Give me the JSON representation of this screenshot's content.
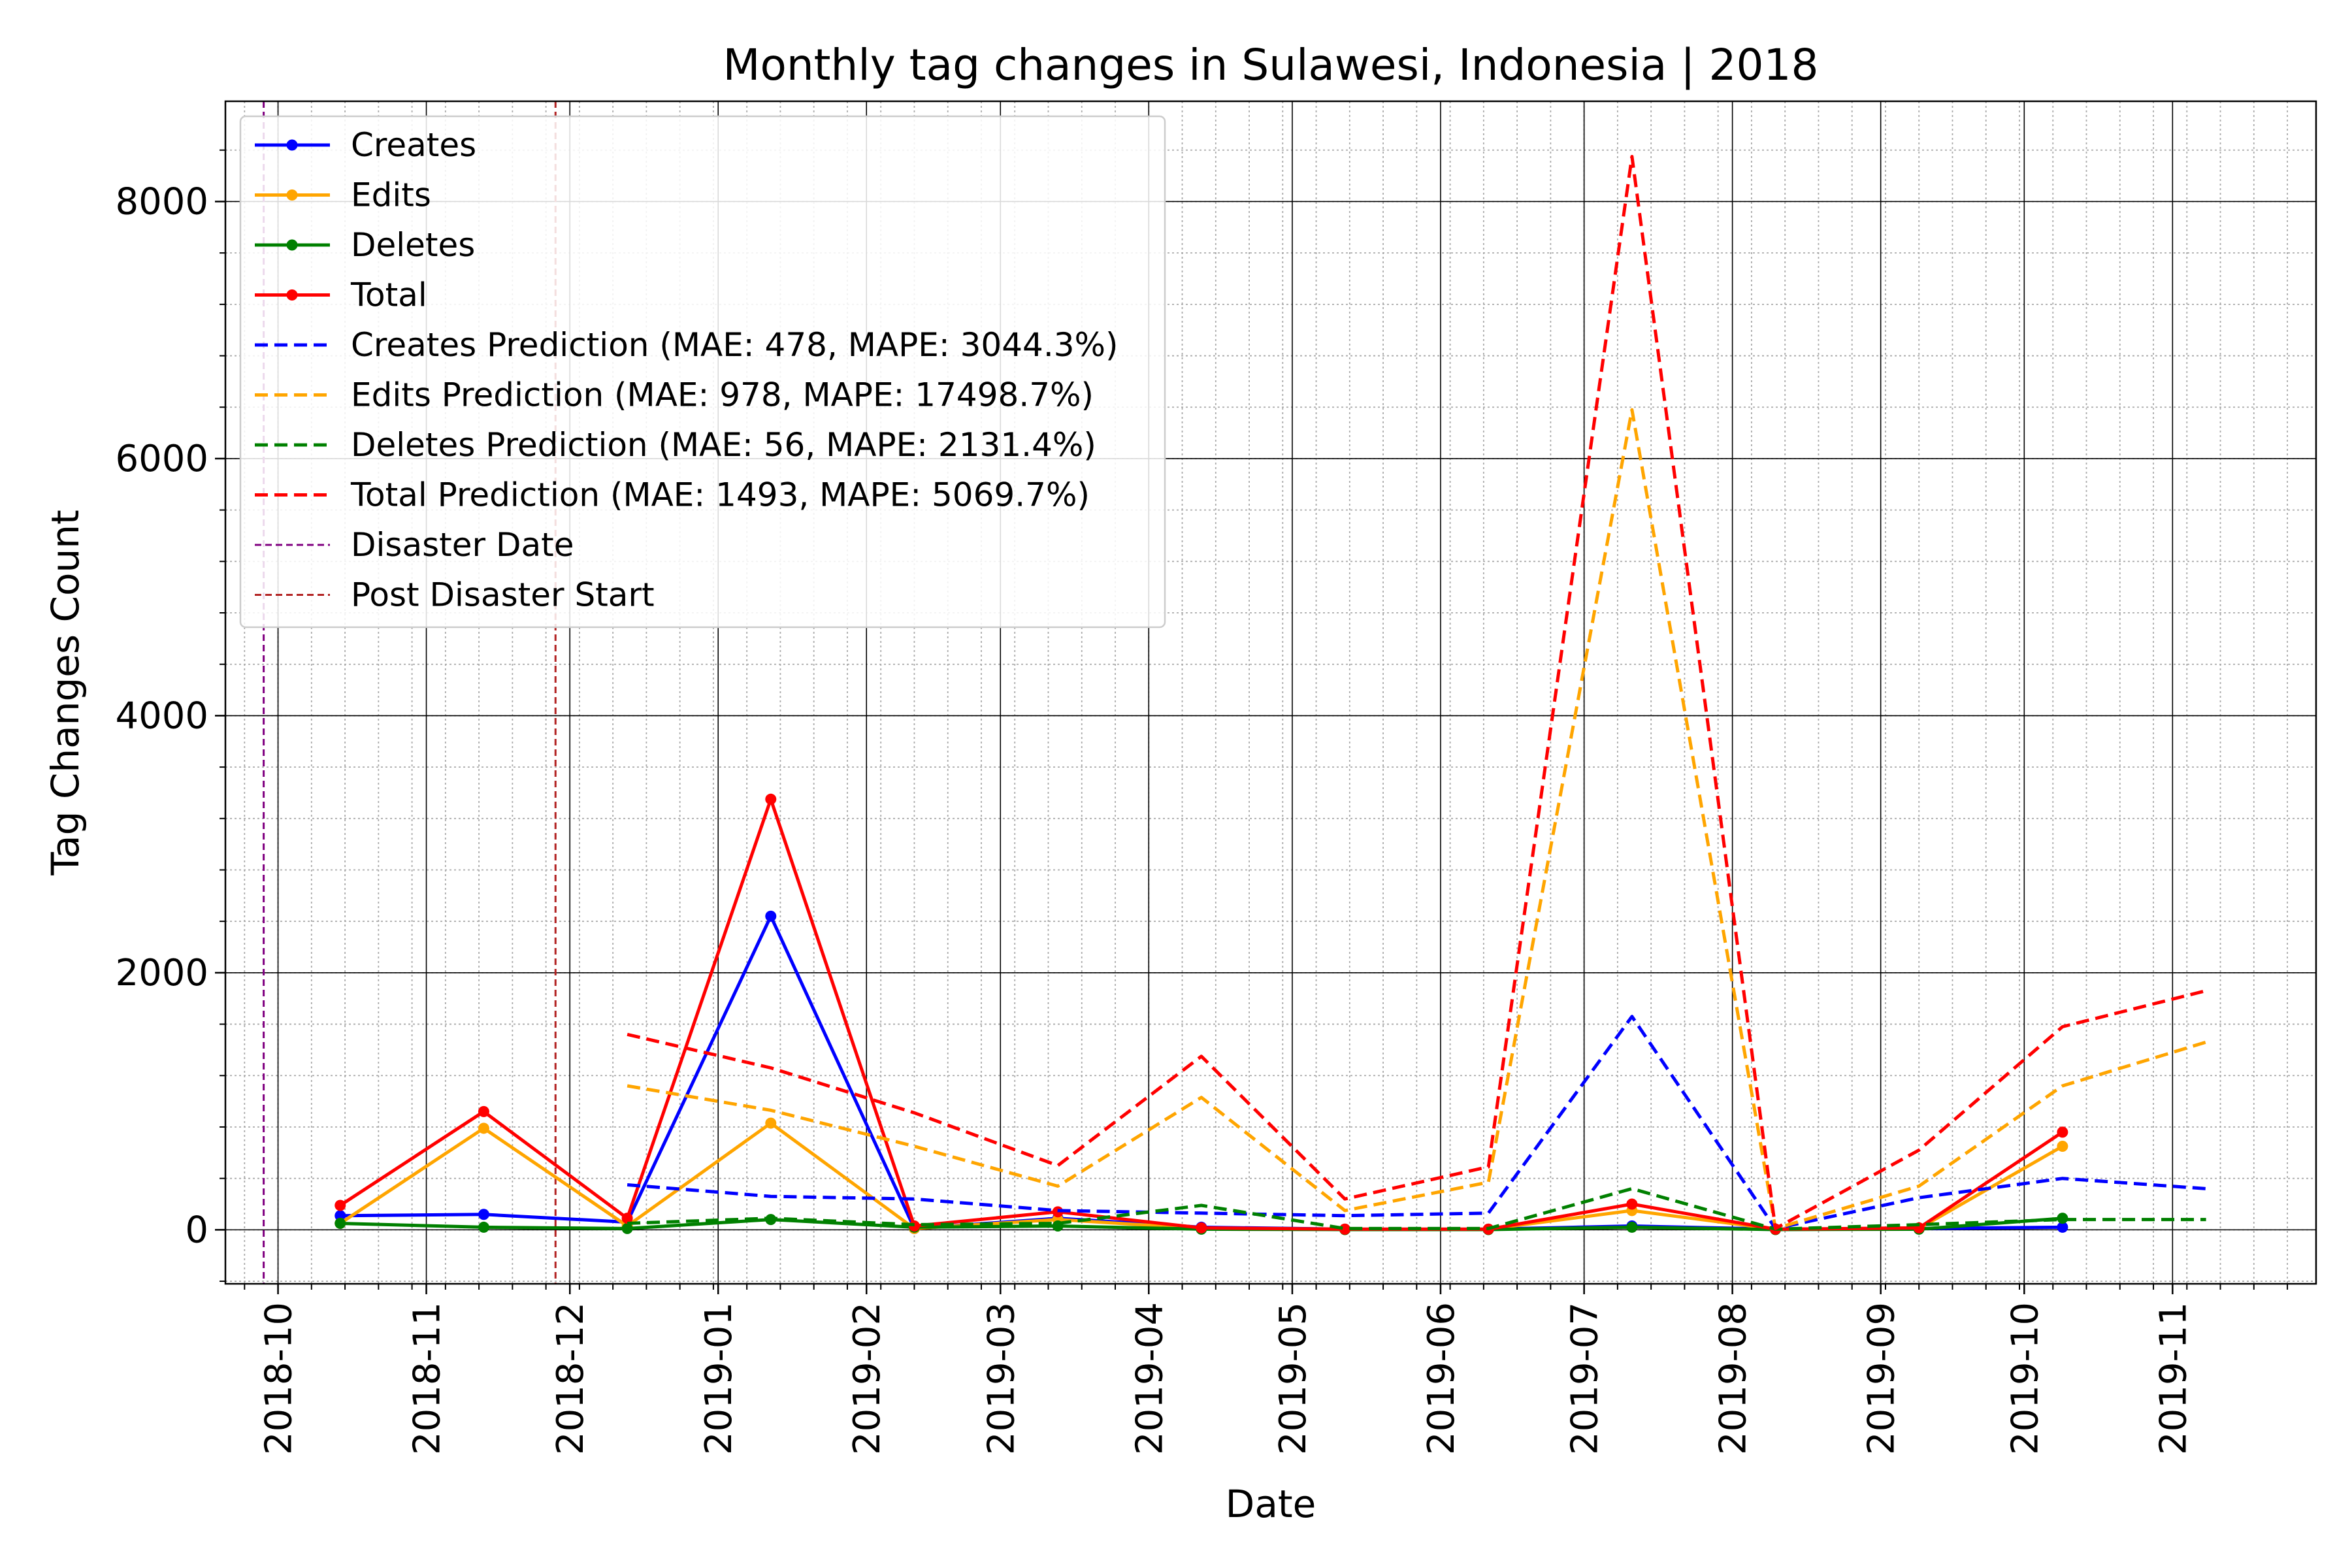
{
  "chart_data": {
    "type": "line",
    "title": "Monthly tag changes in Sulawesi, Indonesia | 2018",
    "xlabel": "Date",
    "ylabel": "Tag Changes Count",
    "xlim": [
      "2018-09-20",
      "2019-12-01"
    ],
    "ylim": [
      -420,
      8780
    ],
    "yticks": [
      0,
      2000,
      4000,
      6000,
      8000
    ],
    "xticks": [
      "2018-10",
      "2018-11",
      "2018-12",
      "2019-01",
      "2019-02",
      "2019-03",
      "2019-04",
      "2019-05",
      "2019-06",
      "2019-07",
      "2019-08",
      "2019-09",
      "2019-10",
      "2019-11"
    ],
    "grid": true,
    "legend_position": "top-left",
    "series": [
      {
        "name": "Creates",
        "color": "#0000ff",
        "style": "solid",
        "marker": true,
        "x": [
          "2018-10-14",
          "2018-11-13",
          "2018-12-13",
          "2019-01-12",
          "2019-02-11",
          "2019-03-13",
          "2019-04-12",
          "2019-05-12",
          "2019-06-11",
          "2019-07-11",
          "2019-08-10",
          "2019-09-09",
          "2019-10-09"
        ],
        "values": [
          110,
          120,
          60,
          2440,
          10,
          90,
          20,
          5,
          5,
          30,
          5,
          10,
          20
        ]
      },
      {
        "name": "Edits",
        "color": "#ffa500",
        "style": "solid",
        "marker": true,
        "x": [
          "2018-10-14",
          "2018-11-13",
          "2018-12-13",
          "2019-01-12",
          "2019-02-11",
          "2019-03-13",
          "2019-04-12",
          "2019-05-12",
          "2019-06-11",
          "2019-07-11",
          "2019-08-10",
          "2019-09-09",
          "2019-10-09"
        ],
        "values": [
          50,
          790,
          30,
          830,
          10,
          80,
          10,
          5,
          5,
          150,
          5,
          10,
          650
        ]
      },
      {
        "name": "Deletes",
        "color": "#008000",
        "style": "solid",
        "marker": true,
        "x": [
          "2018-10-14",
          "2018-11-13",
          "2018-12-13",
          "2019-01-12",
          "2019-02-11",
          "2019-03-13",
          "2019-04-12",
          "2019-05-12",
          "2019-06-11",
          "2019-07-11",
          "2019-08-10",
          "2019-09-09",
          "2019-10-09"
        ],
        "values": [
          50,
          20,
          10,
          80,
          20,
          30,
          5,
          2,
          2,
          20,
          2,
          5,
          90
        ]
      },
      {
        "name": "Total",
        "color": "#ff0000",
        "style": "solid",
        "marker": true,
        "x": [
          "2018-10-14",
          "2018-11-13",
          "2018-12-13",
          "2019-01-12",
          "2019-02-11",
          "2019-03-13",
          "2019-04-12",
          "2019-05-12",
          "2019-06-11",
          "2019-07-11",
          "2019-08-10",
          "2019-09-09",
          "2019-10-09"
        ],
        "values": [
          190,
          920,
          90,
          3350,
          30,
          140,
          15,
          5,
          5,
          200,
          5,
          15,
          760
        ]
      },
      {
        "name": "Creates Prediction (MAE: 478, MAPE: 3044.3%)",
        "color": "#0000ff",
        "style": "dashed",
        "marker": false,
        "x": [
          "2018-12-13",
          "2019-01-12",
          "2019-02-11",
          "2019-03-13",
          "2019-04-12",
          "2019-05-12",
          "2019-06-11",
          "2019-07-11",
          "2019-08-10",
          "2019-09-09",
          "2019-10-09",
          "2019-11-08"
        ],
        "values": [
          350,
          260,
          240,
          150,
          130,
          110,
          130,
          1660,
          10,
          250,
          400,
          320
        ]
      },
      {
        "name": "Edits Prediction (MAE: 978, MAPE: 17498.7%)",
        "color": "#ffa500",
        "style": "dashed",
        "marker": false,
        "x": [
          "2018-12-13",
          "2019-01-12",
          "2019-02-11",
          "2019-03-13",
          "2019-04-12",
          "2019-05-12",
          "2019-06-11",
          "2019-07-11",
          "2019-08-10",
          "2019-09-09",
          "2019-10-09",
          "2019-11-08"
        ],
        "values": [
          1120,
          930,
          650,
          340,
          1030,
          150,
          370,
          6380,
          10,
          340,
          1120,
          1460
        ]
      },
      {
        "name": "Deletes Prediction (MAE: 56, MAPE: 2131.4%)",
        "color": "#008000",
        "style": "dashed",
        "marker": false,
        "x": [
          "2018-12-13",
          "2019-01-12",
          "2019-02-11",
          "2019-03-13",
          "2019-04-12",
          "2019-05-12",
          "2019-06-11",
          "2019-07-11",
          "2019-08-10",
          "2019-09-09",
          "2019-10-09",
          "2019-11-08"
        ],
        "values": [
          50,
          90,
          40,
          50,
          190,
          10,
          10,
          320,
          5,
          40,
          80,
          80
        ]
      },
      {
        "name": "Total Prediction (MAE: 1493, MAPE: 5069.7%)",
        "color": "#ff0000",
        "style": "dashed",
        "marker": false,
        "x": [
          "2018-12-13",
          "2019-01-12",
          "2019-02-11",
          "2019-03-13",
          "2019-04-12",
          "2019-05-12",
          "2019-06-11",
          "2019-07-11",
          "2019-08-10",
          "2019-09-09",
          "2019-10-09",
          "2019-11-08"
        ],
        "values": [
          1520,
          1260,
          910,
          500,
          1350,
          240,
          490,
          8350,
          10,
          620,
          1580,
          1860
        ]
      }
    ],
    "vlines": [
      {
        "name": "Disaster Date",
        "x": "2018-09-28",
        "color": "#800080"
      },
      {
        "name": "Post Disaster Start",
        "x": "2018-11-28",
        "color": "#b22222"
      }
    ]
  }
}
